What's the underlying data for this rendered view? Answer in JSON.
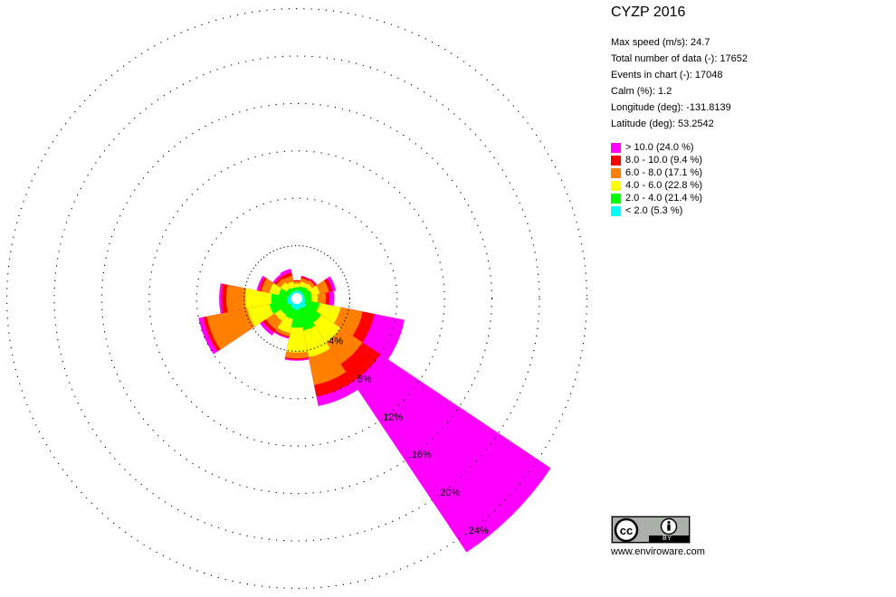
{
  "title": "CYZP 2016",
  "info": {
    "max_speed": "Max speed (m/s): 24.7",
    "total": "Total number of data (-): 17652",
    "events": "Events in chart (-): 17048",
    "calm": "Calm (%): 1.2",
    "longitude": "Longitude (deg): -131.8139",
    "latitude": "Latitude  (deg): 53.2542"
  },
  "legend": [
    {
      "label": "> 10.0 (24.0 %)",
      "color": "#ff00ff"
    },
    {
      "label": "8.0 - 10.0 (9.4 %)",
      "color": "#ff0000"
    },
    {
      "label": "6.0 - 8.0 (17.1 %)",
      "color": "#ff8000"
    },
    {
      "label": "4.0 - 6.0 (22.8 %)",
      "color": "#ffff00"
    },
    {
      "label": "2.0 - 4.0 (21.4 %)",
      "color": "#00ff00"
    },
    {
      "label": "< 2.0 (5.3 %)",
      "color": "#00ffff"
    }
  ],
  "license": {
    "badge_text": "BY",
    "icon": "cc-by-icon"
  },
  "website": "www.enviroware.com",
  "chart_data": {
    "type": "wind-rose",
    "unit": "%",
    "directions_deg": [
      0,
      22.5,
      45,
      67.5,
      90,
      112.5,
      135,
      157.5,
      180,
      202.5,
      225,
      247.5,
      270,
      292.5,
      315,
      337.5
    ],
    "bins": [
      "< 2.0",
      "2.0 - 4.0",
      "4.0 - 6.0",
      "6.0 - 8.0",
      "8.0 - 10.0",
      "> 10.0"
    ],
    "cumulative": [
      [
        0.2,
        0.5,
        0.8,
        1.0,
        1.1,
        1.1
      ],
      [
        0.2,
        0.6,
        1.0,
        1.3,
        1.45,
        1.5
      ],
      [
        0.2,
        0.7,
        1.1,
        1.4,
        1.5,
        1.6
      ],
      [
        0.2,
        0.8,
        1.5,
        2.3,
        2.6,
        2.9
      ],
      [
        0.2,
        0.8,
        1.3,
        2.0,
        2.3,
        2.7
      ],
      [
        0.3,
        1.5,
        3.3,
        5.2,
        6.2,
        8.8
      ],
      [
        0.5,
        2.0,
        4.0,
        6.2,
        8.0,
        25.3
      ],
      [
        0.4,
        2.3,
        4.6,
        7.0,
        8.0,
        8.8
      ],
      [
        0.5,
        2.0,
        4.1,
        4.6,
        4.7,
        4.8
      ],
      [
        0.4,
        1.3,
        2.5,
        2.8,
        2.9,
        3.0
      ],
      [
        0.3,
        1.2,
        1.8,
        2.7,
        3.0,
        3.3
      ],
      [
        0.4,
        1.9,
        3.8,
        7.3,
        7.6,
        8.0
      ],
      [
        0.4,
        1.7,
        3.9,
        5.5,
        5.9,
        6.1
      ],
      [
        0.2,
        1.1,
        1.9,
        2.6,
        2.8,
        3.0
      ],
      [
        0.2,
        0.6,
        1.2,
        1.6,
        1.8,
        2.0
      ],
      [
        0.2,
        0.5,
        1.0,
        1.5,
        1.8,
        2.1
      ]
    ],
    "rings": [
      4,
      8,
      12,
      16,
      20,
      24
    ],
    "ring_labels": [
      "4%",
      "8%",
      "12%",
      "16%",
      "20%",
      "24%"
    ]
  }
}
